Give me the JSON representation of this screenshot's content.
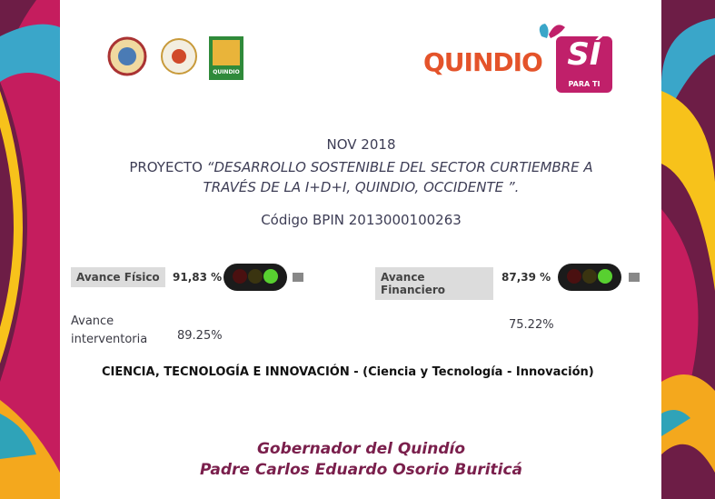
{
  "logos": {
    "small_logo_label": "QUINDIO",
    "brand": {
      "name": "QUINDIO",
      "accent": "SÍ",
      "tagline": "PARA TI"
    }
  },
  "header": {
    "date": "NOV 2018",
    "project_prefix": "PROYECTO",
    "project_name_lines": [
      "“DESARROLLO SOSTENIBLE DEL SECTOR CURTIEMBRE A",
      "TRAVÉS DE LA I+D+I, QUINDIO, OCCIDENTE ”."
    ],
    "code": "Código BPIN 2013000100263"
  },
  "progress": {
    "physical": {
      "label": "Avance Físico",
      "value": "91,83 %"
    },
    "financial": {
      "label": "Avance Financiero",
      "value": "87,39 %"
    },
    "supervision": {
      "label": "Avance interventoria",
      "value": "89.25%"
    },
    "financial_supervision_value": "75.22%"
  },
  "sector": {
    "title": "CIENCIA, TECNOLOGÍA E INNOVACIÓN",
    "detail": "- (Ciencia y Tecnología - Innovación)"
  },
  "footer": {
    "role": "Gobernador del Quindío",
    "name": "Padre Carlos Eduardo Osorio Buriticá"
  }
}
